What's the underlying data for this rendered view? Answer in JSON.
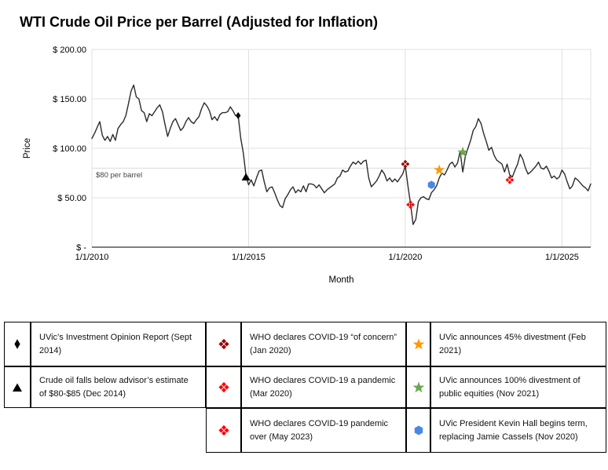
{
  "chart_data": {
    "type": "line",
    "title": "WTI Crude Oil Price per Barrel (Adjusted for Inflation)",
    "xlabel": "Month",
    "ylabel": "Price",
    "ylim": [
      0,
      200
    ],
    "grid": true,
    "line_color": "#2b2b2b",
    "y_ticks": [
      {
        "label": "$ 200.00",
        "value": 200
      },
      {
        "label": "$ 150.00",
        "value": 150
      },
      {
        "label": "$ 100.00",
        "value": 100
      },
      {
        "label": "$ 50.00",
        "value": 50
      },
      {
        "label": "$ -",
        "value": 0
      }
    ],
    "x_ticks": [
      {
        "label": "1/1/2010",
        "month_index": 0
      },
      {
        "label": "1/1/2015",
        "month_index": 60
      },
      {
        "label": "1/1/2020",
        "month_index": 120
      },
      {
        "label": "1/1/2025",
        "month_index": 180
      }
    ],
    "reference_line": {
      "value": 80,
      "label": "$80 per barrel"
    },
    "series": [
      {
        "name": "WTI crude oil price (inflation adjusted), monthly from Jan 2010",
        "values": [
          110,
          115,
          121,
          127,
          113,
          108,
          112,
          107,
          114,
          108,
          120,
          124,
          127,
          133,
          145,
          158,
          164,
          152,
          150,
          138,
          136,
          127,
          135,
          133,
          137,
          141,
          144,
          137,
          124,
          112,
          120,
          127,
          130,
          124,
          118,
          121,
          127,
          131,
          127,
          125,
          129,
          132,
          140,
          146,
          143,
          138,
          129,
          132,
          128,
          134,
          136,
          136,
          137,
          142,
          138,
          133,
          133,
          110,
          95,
          72,
          63,
          68,
          62,
          70,
          77,
          78,
          66,
          56,
          60,
          61,
          55,
          48,
          42,
          40,
          49,
          53,
          58,
          61,
          55,
          58,
          56,
          62,
          56,
          64,
          64,
          63,
          60,
          63,
          59,
          55,
          58,
          60,
          62,
          64,
          70,
          72,
          78,
          76,
          77,
          82,
          86,
          84,
          87,
          84,
          87,
          88,
          70,
          61,
          64,
          67,
          72,
          78,
          74,
          67,
          70,
          66,
          69,
          66,
          70,
          74,
          82,
          62,
          44,
          23,
          28,
          46,
          50,
          51,
          49,
          48,
          55,
          58,
          62,
          70,
          75,
          73,
          78,
          84,
          86,
          81,
          85,
          97,
          76,
          92,
          100,
          108,
          118,
          122,
          130,
          125,
          115,
          107,
          98,
          101,
          93,
          88,
          86,
          84,
          76,
          84,
          73,
          71,
          78,
          84,
          94,
          89,
          80,
          74,
          76,
          79,
          82,
          86,
          80,
          79,
          82,
          77,
          70,
          72,
          69,
          71,
          78,
          74,
          66,
          59,
          62,
          70,
          68,
          65,
          62,
          60,
          57,
          64
        ]
      }
    ],
    "markers": [
      {
        "shape": "diamond",
        "color": "#000000",
        "date": "Sep 2014",
        "month_index": 56,
        "value": 133
      },
      {
        "shape": "triangle",
        "color": "#000000",
        "date": "Dec 2014",
        "month_index": 59,
        "value": 71
      },
      {
        "shape": "diamond-cluster",
        "color": "#990000",
        "date": "Jan 2020",
        "month_index": 120,
        "value": 84
      },
      {
        "shape": "diamond-cluster",
        "color": "#ff0000",
        "date": "Mar 2020",
        "month_index": 122,
        "value": 43
      },
      {
        "shape": "hexagon",
        "color": "#4a86e8",
        "date": "Nov 2020",
        "month_index": 130,
        "value": 63
      },
      {
        "shape": "star",
        "color": "#ff9900",
        "date": "Feb 2021",
        "month_index": 133,
        "value": 78
      },
      {
        "shape": "star",
        "color": "#6aa84f",
        "date": "Nov 2021",
        "month_index": 142,
        "value": 96
      },
      {
        "shape": "diamond-cluster",
        "color": "#ff0000",
        "date": "May 2023",
        "month_index": 160,
        "value": 68
      }
    ]
  },
  "legend": {
    "items": [
      {
        "symbol": "black-diamond",
        "color": "#000000",
        "text": "UVic’s Investment Opinion Report (Sept 2014)"
      },
      {
        "symbol": "black-triangle",
        "color": "#000000",
        "text": "Crude oil falls below advisor’s estimate of $80-$85 (Dec 2014)"
      },
      {
        "symbol": "dark-red-diamond-cluster",
        "color": "#990000",
        "text": "WHO declares COVID-19 “of concern” (Jan 2020)"
      },
      {
        "symbol": "red-diamond-cluster",
        "color": "#ff0000",
        "text": "WHO declares COVID-19 a pandemic (Mar 2020)"
      },
      {
        "symbol": "red-diamond-cluster",
        "color": "#ff0000",
        "text": "WHO declares COVID-19 pandemic over (May 2023)"
      },
      {
        "symbol": "orange-star",
        "color": "#ff9900",
        "text": "UVic announces 45% divestment (Feb 2021)"
      },
      {
        "symbol": "green-star",
        "color": "#6aa84f",
        "text": "UVic announces 100% divestment of public equities (Nov 2021)"
      },
      {
        "symbol": "blue-hexagon",
        "color": "#4a86e8",
        "text": "UVic President Kevin Hall begins term, replacing Jamie Cassels (Nov 2020)"
      }
    ]
  }
}
